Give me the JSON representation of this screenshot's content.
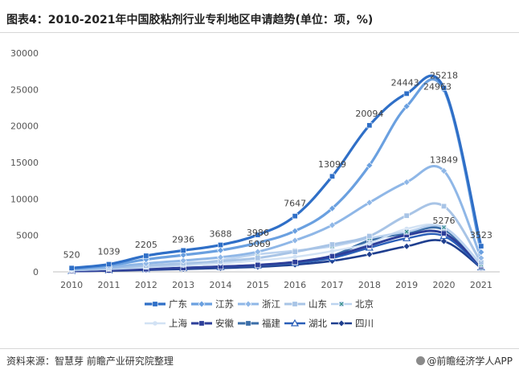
{
  "title": "图表4：2010-2021年中国胶粘剂行业专利地区申请趋势(单位：项，%)",
  "source": "资料来源：智慧芽 前瞻产业研究院整理",
  "brand": "@前瞻经济学人APP",
  "chart_data": {
    "type": "line",
    "x": [
      "2010",
      "2011",
      "2012",
      "2013",
      "2014",
      "2015",
      "2016",
      "2017",
      "2018",
      "2019",
      "2020",
      "2021"
    ],
    "ylim": [
      0,
      30000
    ],
    "yticks": [
      0,
      5000,
      10000,
      15000,
      20000,
      25000,
      30000
    ],
    "legend_position": "bottom",
    "series": [
      {
        "name": "广东",
        "color": "#2f6fc7",
        "width": 3.2,
        "marker": "square",
        "values": [
          520,
          1039,
          2205,
          2936,
          3688,
          5069,
          7647,
          13099,
          20094,
          24443,
          25218,
          3523
        ],
        "labels": true
      },
      {
        "name": "江苏",
        "color": "#6aa0e0",
        "width": 3.2,
        "marker": "diamond",
        "values": [
          450,
          880,
          1700,
          2300,
          2950,
          3986,
          5600,
          8700,
          14600,
          22700,
          24963,
          2700
        ],
        "labels": false
      },
      {
        "name": "浙江",
        "color": "#8fb7e7",
        "width": 3.0,
        "marker": "diamond",
        "values": [
          350,
          650,
          1150,
          1550,
          2000,
          2750,
          4300,
          6400,
          9500,
          12300,
          13849,
          1900
        ],
        "labels": false
      },
      {
        "name": "山东",
        "color": "#a8c4e6",
        "width": 3.0,
        "marker": "square",
        "values": [
          250,
          480,
          850,
          1150,
          1450,
          1900,
          2750,
          3750,
          4900,
          7700,
          9000,
          1300
        ],
        "labels": false
      },
      {
        "name": "北京",
        "color": "#bcd3ef",
        "width": 2.6,
        "marker": "xsquare",
        "values": [
          220,
          420,
          700,
          1000,
          1600,
          2400,
          2900,
          3500,
          4600,
          5500,
          6100,
          1000
        ],
        "labels": false
      },
      {
        "name": "上海",
        "color": "#d2e2f4",
        "width": 2.4,
        "marker": "dot",
        "values": [
          200,
          380,
          620,
          860,
          1150,
          1550,
          2050,
          2850,
          3900,
          5900,
          6050,
          900
        ],
        "labels": false
      },
      {
        "name": "安徽",
        "color": "#2d3f9a",
        "width": 3.0,
        "marker": "square",
        "values": [
          100,
          200,
          360,
          540,
          720,
          940,
          1350,
          2150,
          3600,
          5050,
          5276,
          800
        ],
        "labels": false
      },
      {
        "name": "福建",
        "color": "#3b6ea8",
        "width": 3.0,
        "marker": "square",
        "values": [
          120,
          220,
          380,
          520,
          700,
          900,
          1300,
          2200,
          4300,
          5300,
          5800,
          650
        ],
        "labels": false
      },
      {
        "name": "湖北",
        "color": "#2a5fb8",
        "width": 2.4,
        "marker": "triangle",
        "values": [
          110,
          210,
          350,
          500,
          650,
          850,
          1200,
          1900,
          3300,
          4600,
          4900,
          600
        ],
        "labels": false
      },
      {
        "name": "四川",
        "color": "#1f3f8f",
        "width": 2.6,
        "marker": "diamond",
        "values": [
          80,
          150,
          260,
          380,
          520,
          680,
          980,
          1500,
          2400,
          3500,
          4200,
          550
        ],
        "labels": false
      }
    ],
    "annotations": [
      {
        "text": "520",
        "x": "2010",
        "y": 520
      },
      {
        "text": "1039",
        "x": "2011",
        "y": 1039
      },
      {
        "text": "2205",
        "x": "2012",
        "y": 2205
      },
      {
        "text": "2936",
        "x": "2013",
        "y": 2936
      },
      {
        "text": "3688",
        "x": "2014",
        "y": 3688
      },
      {
        "text": "3986",
        "x": "2015",
        "y": 3986
      },
      {
        "text": "5069",
        "x": "2015",
        "y": 5069
      },
      {
        "text": "7647",
        "x": "2016",
        "y": 7647
      },
      {
        "text": "13099",
        "x": "2017",
        "y": 13099
      },
      {
        "text": "20094",
        "x": "2018",
        "y": 20094
      },
      {
        "text": "24443",
        "x": "2019",
        "y": 24443
      },
      {
        "text": "25218",
        "x": "2020",
        "y": 25218
      },
      {
        "text": "24963",
        "x": "2020",
        "y": 24963
      },
      {
        "text": "13849",
        "x": "2020",
        "y": 13849
      },
      {
        "text": "5276",
        "x": "2020",
        "y": 5276
      },
      {
        "text": "3523",
        "x": "2021",
        "y": 3523
      }
    ]
  }
}
